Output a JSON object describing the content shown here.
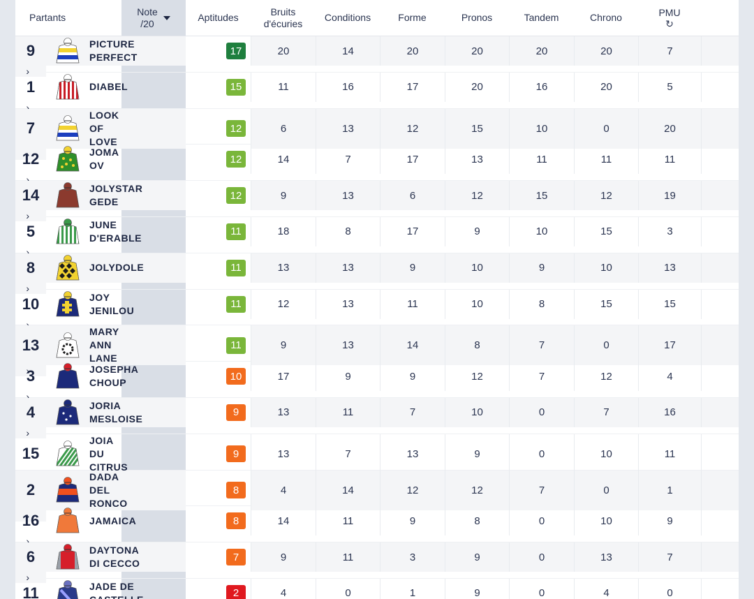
{
  "columns": {
    "partants": "Partants",
    "note_line1": "Note",
    "note_line2": "/20",
    "aptitudes": "Aptitudes",
    "bruits_line1": "Bruits",
    "bruits_line2": "d'écuries",
    "conditions": "Conditions",
    "forme": "Forme",
    "pronos": "Pronos",
    "tandem": "Tandem",
    "chrono": "Chrono",
    "pmu": "PMU",
    "pmu_icon": "↻"
  },
  "colors": {
    "note_17": "#1a7a3c",
    "note_15_11": "#7ab63a",
    "note_10_7": "#f26b1d",
    "note_2": "#e0191f"
  },
  "rows": [
    {
      "num": "9",
      "name": [
        "PICTURE",
        "PERFECT"
      ],
      "note": "17",
      "badge": "#1f7f3e",
      "silk": {
        "body": "#ffffff",
        "stripe": "#f2d230",
        "stripe2": "#1c3fbf",
        "cap": "#ffffff",
        "type": "hoops"
      },
      "vals": [
        "20",
        "14",
        "20",
        "20",
        "20",
        "20",
        "7"
      ],
      "pmu": "›"
    },
    {
      "num": "1",
      "name": [
        "DIABEL"
      ],
      "note": "15",
      "badge": "#7ab63a",
      "silk": {
        "body": "#ffffff",
        "stripe": "#c81d25",
        "cap": "#ffffff",
        "type": "vstripes"
      },
      "vals": [
        "11",
        "16",
        "17",
        "20",
        "16",
        "20",
        "5"
      ],
      "pmu": "›"
    },
    {
      "num": "7",
      "name": [
        "LOOK",
        "OF",
        "LOVE"
      ],
      "note": "12",
      "badge": "#7ab63a",
      "silk": {
        "body": "#ffffff",
        "stripe": "#f2d230",
        "stripe2": "#1c3fbf",
        "cap": "#ffffff",
        "type": "hoops"
      },
      "vals": [
        "6",
        "13",
        "12",
        "15",
        "10",
        "0",
        "20"
      ],
      "pmu": "›"
    },
    {
      "num": "12",
      "name": [
        "JOMA",
        "OV"
      ],
      "note": "12",
      "badge": "#7ab63a",
      "silk": {
        "body": "#2f8f2a",
        "stripe": "#f2d230",
        "cap": "#f2d230",
        "type": "dots"
      },
      "vals": [
        "14",
        "7",
        "17",
        "13",
        "11",
        "11",
        "11"
      ],
      "pmu": "›"
    },
    {
      "num": "14",
      "name": [
        "JOLYSTAR",
        "GEDE"
      ],
      "note": "12",
      "badge": "#7ab63a",
      "silk": {
        "body": "#8b3a2e",
        "stripe": "#8b3a2e",
        "cap": "#8b3a2e",
        "type": "plain"
      },
      "vals": [
        "9",
        "13",
        "6",
        "12",
        "15",
        "12",
        "19"
      ],
      "pmu": "›"
    },
    {
      "num": "5",
      "name": [
        "JUNE",
        "D'ERABLE"
      ],
      "note": "11",
      "badge": "#7ab63a",
      "silk": {
        "body": "#3a9a4a",
        "stripe": "#ffffff",
        "cap": "#3a9a4a",
        "type": "vstripes"
      },
      "vals": [
        "18",
        "8",
        "17",
        "9",
        "10",
        "15",
        "3"
      ],
      "pmu": "›"
    },
    {
      "num": "8",
      "name": [
        "JOLYDOLE"
      ],
      "note": "11",
      "badge": "#7ab63a",
      "silk": {
        "body": "#f2d230",
        "stripe": "#1c1c1c",
        "cap": "#f2d230",
        "type": "diamonds"
      },
      "vals": [
        "13",
        "13",
        "9",
        "10",
        "9",
        "10",
        "13"
      ],
      "pmu": "›"
    },
    {
      "num": "10",
      "name": [
        "JOY",
        "JENILOU"
      ],
      "note": "11",
      "badge": "#7ab63a",
      "silk": {
        "body": "#1c2a7a",
        "stripe": "#f2d230",
        "cap": "#f2d230",
        "type": "cross"
      },
      "vals": [
        "12",
        "13",
        "11",
        "10",
        "8",
        "15",
        "15"
      ],
      "pmu": "›"
    },
    {
      "num": "13",
      "name": [
        "MARY",
        "ANN",
        "LANE"
      ],
      "note": "11",
      "badge": "#7ab63a",
      "silk": {
        "body": "#ffffff",
        "stripe": "#1c1c1c",
        "cap": "#ffffff",
        "type": "ring"
      },
      "vals": [
        "9",
        "13",
        "14",
        "8",
        "7",
        "0",
        "17"
      ],
      "pmu": "›"
    },
    {
      "num": "3",
      "name": [
        "JOSEPHA",
        "CHOUP"
      ],
      "note": "10",
      "badge": "#f26b1d",
      "silk": {
        "body": "#1c2a7a",
        "stripe": "#1c2a7a",
        "cap": "#d61f2a",
        "type": "plain"
      },
      "vals": [
        "17",
        "9",
        "9",
        "12",
        "7",
        "12",
        "4"
      ],
      "pmu": "›"
    },
    {
      "num": "4",
      "name": [
        "JORIA",
        "MESLOISE"
      ],
      "note": "9",
      "badge": "#f26b1d",
      "silk": {
        "body": "#1c2a7a",
        "stripe": "#ffffff",
        "cap": "#1c2a7a",
        "type": "spots"
      },
      "vals": [
        "13",
        "11",
        "7",
        "10",
        "0",
        "7",
        "16"
      ],
      "pmu": "›"
    },
    {
      "num": "15",
      "name": [
        "JOIA",
        "DU",
        "CITRUS"
      ],
      "note": "9",
      "badge": "#f26b1d",
      "silk": {
        "body": "#ffffff",
        "stripe": "#3a9a4a",
        "cap": "#ffffff",
        "type": "diag"
      },
      "vals": [
        "13",
        "7",
        "13",
        "9",
        "0",
        "10",
        "11"
      ],
      "pmu": "›"
    },
    {
      "num": "2",
      "name": [
        "DADA",
        "DEL",
        "RONCO"
      ],
      "note": "8",
      "badge": "#f26b1d",
      "silk": {
        "body": "#1c2a7a",
        "stripe": "#f0501e",
        "cap": "#f0501e",
        "type": "hoopmid"
      },
      "vals": [
        "4",
        "14",
        "12",
        "12",
        "7",
        "0",
        "1"
      ],
      "pmu": "›"
    },
    {
      "num": "16",
      "name": [
        "JAMAICA"
      ],
      "note": "8",
      "badge": "#f26b1d",
      "silk": {
        "body": "#f0793a",
        "stripe": "#f0793a",
        "cap": "#f0793a",
        "type": "plain"
      },
      "vals": [
        "14",
        "11",
        "9",
        "8",
        "0",
        "10",
        "9"
      ],
      "pmu": "›"
    },
    {
      "num": "6",
      "name": [
        "DAYTONA",
        "DI CECCO"
      ],
      "note": "7",
      "badge": "#f26b1d",
      "silk": {
        "body": "#d61f2a",
        "stripe": "#9aa0a8",
        "cap": "#d61f2a",
        "type": "sleeves"
      },
      "vals": [
        "9",
        "11",
        "3",
        "9",
        "0",
        "13",
        "7"
      ],
      "pmu": "›"
    },
    {
      "num": "11",
      "name": [
        "JADE DE",
        "CASTELLE"
      ],
      "note": "2",
      "badge": "#e0191f",
      "silk": {
        "body": "#2a3a8a",
        "stripe": "#9aa0ff",
        "cap": "#6a70c0",
        "type": "sash"
      },
      "vals": [
        "4",
        "0",
        "1",
        "9",
        "0",
        "4",
        "0"
      ],
      "pmu": "›"
    }
  ]
}
